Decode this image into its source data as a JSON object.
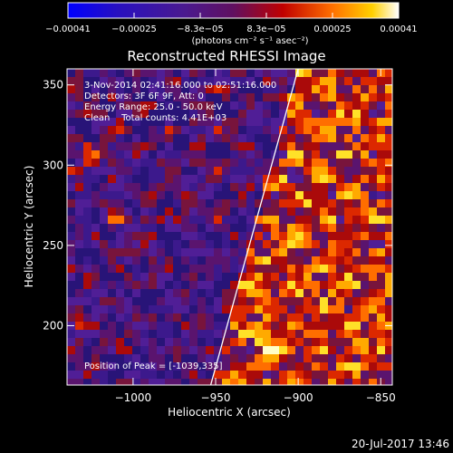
{
  "chart_data": {
    "type": "heatmap",
    "title": "Reconstructed RHESSI Image",
    "xlabel": "Heliocentric X (arcsec)",
    "ylabel": "Heliocentric Y (arcsec)",
    "xlim": [
      -1040,
      -843
    ],
    "ylim": [
      163,
      360
    ],
    "x_ticks": [
      -1000,
      -950,
      -900,
      -850
    ],
    "x_tick_labels": [
      "−1000",
      "−950",
      "−900",
      "−850"
    ],
    "y_ticks": [
      200,
      250,
      300,
      350
    ],
    "y_tick_labels": [
      "200",
      "250",
      "300",
      "350"
    ],
    "colorbar": {
      "range": [
        -0.00041,
        0.00041
      ],
      "tick_labels": [
        "−0.00041",
        "−0.00025",
        "−8.3e−05",
        "8.3e−05",
        "0.00025",
        "0.00041"
      ],
      "label": "(photons cm⁻² s⁻¹ asec⁻²)",
      "colors": [
        "#0000ff",
        "#3a1aa0",
        "#50208a",
        "#8a1010",
        "#ff2000",
        "#ffb000",
        "#ffffff"
      ]
    },
    "annotations": {
      "time_range": "3-Nov-2014 02:41:16.000 to 02:51:16.000",
      "detectors": "Detectors: 3F 6F 9F, Att: 0",
      "energy": "Energy Range: 25.0 - 50.0 keV",
      "method": "Clean    Total counts: 4.41E+03",
      "peak": "Position of Peak = [-1039,335]"
    },
    "limb_line": {
      "x": [
        -953,
        -900
      ],
      "y": [
        163,
        360
      ]
    },
    "grid": false
  },
  "footer": {
    "timestamp": "20-Jul-2017 13:46"
  }
}
